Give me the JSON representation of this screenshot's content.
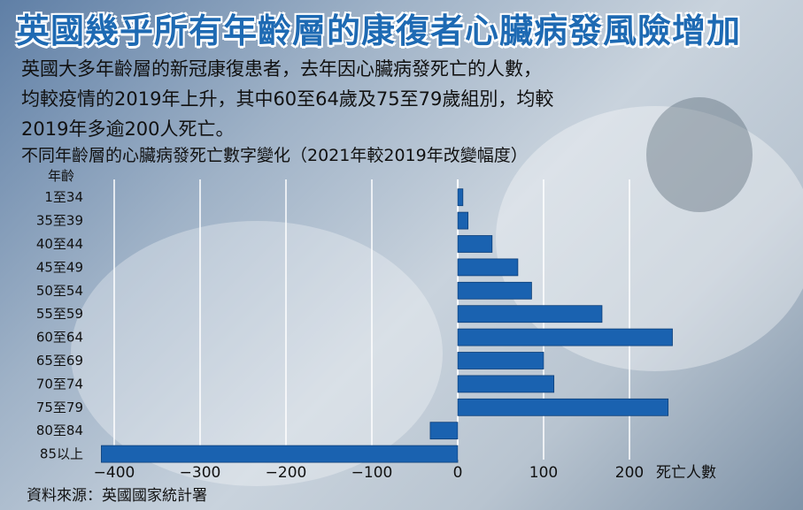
{
  "title": "英國幾乎所有年齡層的康復者心臟病發風險增加",
  "subtitle_lines": [
    "英國大多年齡層的新冠康復患者，去年因心臟病發死亡的人數，",
    "均較疫情的2019年上升，其中60至64歲及75至79歲組別，均較",
    "2019年多逾200人死亡。",
    "不同年齡層的心臟病發死亡數字變化（2021年較2019年改變幅度）"
  ],
  "source": "資料來源：英國國家統計署",
  "colors": {
    "bar": "#1a62b0",
    "title": "#1e6ab3"
  },
  "chart_data": {
    "type": "bar",
    "orientation": "horizontal",
    "ylabel": "年齡",
    "xlabel": "死亡人數",
    "categories": [
      "1至34",
      "35至39",
      "40至44",
      "45至49",
      "50至54",
      "55至59",
      "60至64",
      "65至69",
      "70至74",
      "75至79",
      "80至84",
      "85以上"
    ],
    "values": [
      6,
      12,
      40,
      70,
      86,
      168,
      250,
      100,
      112,
      245,
      -32,
      -415
    ],
    "xlim": [
      -420,
      260
    ],
    "xticks": [
      -400,
      -300,
      -200,
      -100,
      0,
      100,
      200
    ],
    "xtick_labels": [
      "−400",
      "−300",
      "−200",
      "−100",
      "0",
      "100",
      "200"
    ],
    "grid": true
  }
}
